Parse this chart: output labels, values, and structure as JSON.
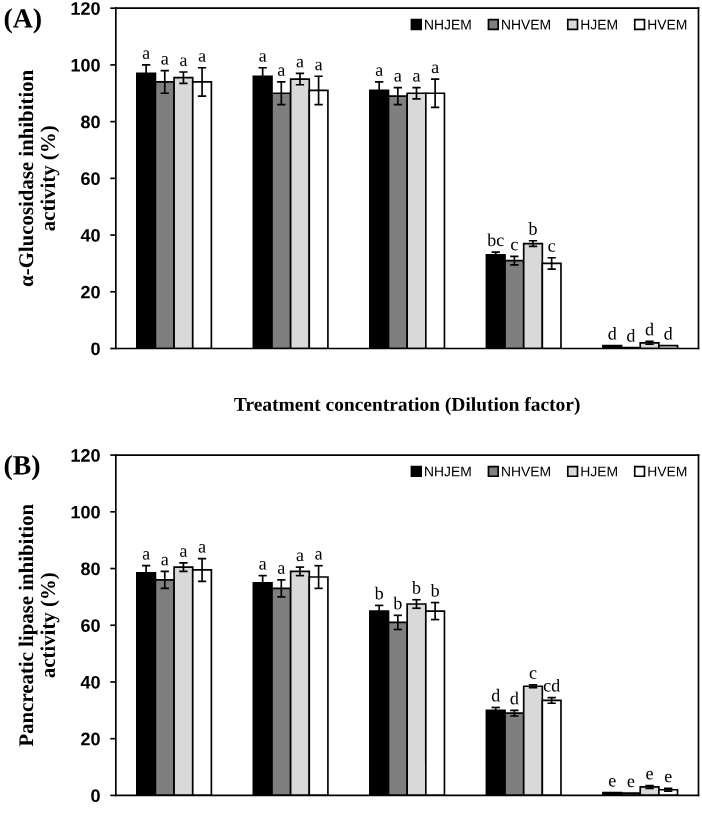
{
  "chart_data": [
    {
      "type": "bar",
      "title": "(A)",
      "xlabel": "Treatment concentration (Dilution factor)",
      "ylabel": "α-Glucosidase inhibition\nactivity (%)",
      "categories": [
        null,
        null,
        null,
        null,
        null
      ],
      "ylim": [
        0,
        120
      ],
      "yticks": [
        0,
        20,
        40,
        60,
        80,
        100,
        120
      ],
      "legend": "top right",
      "series": [
        {
          "name": "NHJEM",
          "color": "#000000",
          "values": [
            97,
            96,
            91,
            33,
            1
          ],
          "errors": [
            3,
            3,
            3,
            1,
            null
          ],
          "value_labels": [
            "a",
            "a",
            "a",
            "bc",
            "d"
          ]
        },
        {
          "name": "NHVEM",
          "color": "#7f7f7f",
          "values": [
            94,
            90,
            89,
            31,
            0.3
          ],
          "errors": [
            4,
            4,
            3,
            1.5,
            null
          ],
          "value_labels": [
            "a",
            "a",
            "a",
            "c",
            "d"
          ]
        },
        {
          "name": "HJEM",
          "color": "#d9d9d9",
          "values": [
            95.5,
            95,
            90,
            37,
            2
          ],
          "errors": [
            2,
            2,
            2,
            1,
            0.5
          ],
          "value_labels": [
            "a",
            "a",
            "a",
            "b",
            "d"
          ]
        },
        {
          "name": "HVEM",
          "color": "#ffffff",
          "values": [
            94,
            91,
            90,
            30,
            1
          ],
          "errors": [
            5,
            5,
            5,
            2,
            null
          ],
          "value_labels": [
            "a",
            "a",
            "a",
            "c",
            "d"
          ]
        }
      ]
    },
    {
      "type": "bar",
      "title": "(B)",
      "ylabel": "Pancreatic lipase inhibition\nactivity (%)",
      "categories": [
        null,
        null,
        null,
        null,
        null
      ],
      "ylim": [
        0,
        120
      ],
      "yticks": [
        0,
        20,
        40,
        60,
        80,
        100,
        120
      ],
      "legend": "top right",
      "series": [
        {
          "name": "NHJEM",
          "color": "#000000",
          "values": [
            78.5,
            75,
            65,
            30,
            1
          ],
          "errors": [
            2.5,
            2.5,
            2,
            1,
            null
          ],
          "value_labels": [
            "a",
            "a",
            "b",
            "d",
            "e"
          ]
        },
        {
          "name": "NHVEM",
          "color": "#7f7f7f",
          "values": [
            76,
            73,
            61,
            29,
            0.8
          ],
          "errors": [
            3,
            3,
            2.5,
            1,
            null
          ],
          "value_labels": [
            "a",
            "a",
            "b",
            "d",
            "e"
          ]
        },
        {
          "name": "HJEM",
          "color": "#d9d9d9",
          "values": [
            80.5,
            79,
            67.5,
            38.5,
            3
          ],
          "errors": [
            1.5,
            1.5,
            1.5,
            0.5,
            0.5
          ],
          "value_labels": [
            "a",
            "a",
            "b",
            "c",
            "e"
          ]
        },
        {
          "name": "HVEM",
          "color": "#ffffff",
          "values": [
            79.5,
            77,
            65,
            33.5,
            2
          ],
          "errors": [
            4,
            4,
            3,
            1,
            0.5
          ],
          "value_labels": [
            "a",
            "a",
            "b",
            "cd",
            "e"
          ]
        }
      ]
    }
  ]
}
